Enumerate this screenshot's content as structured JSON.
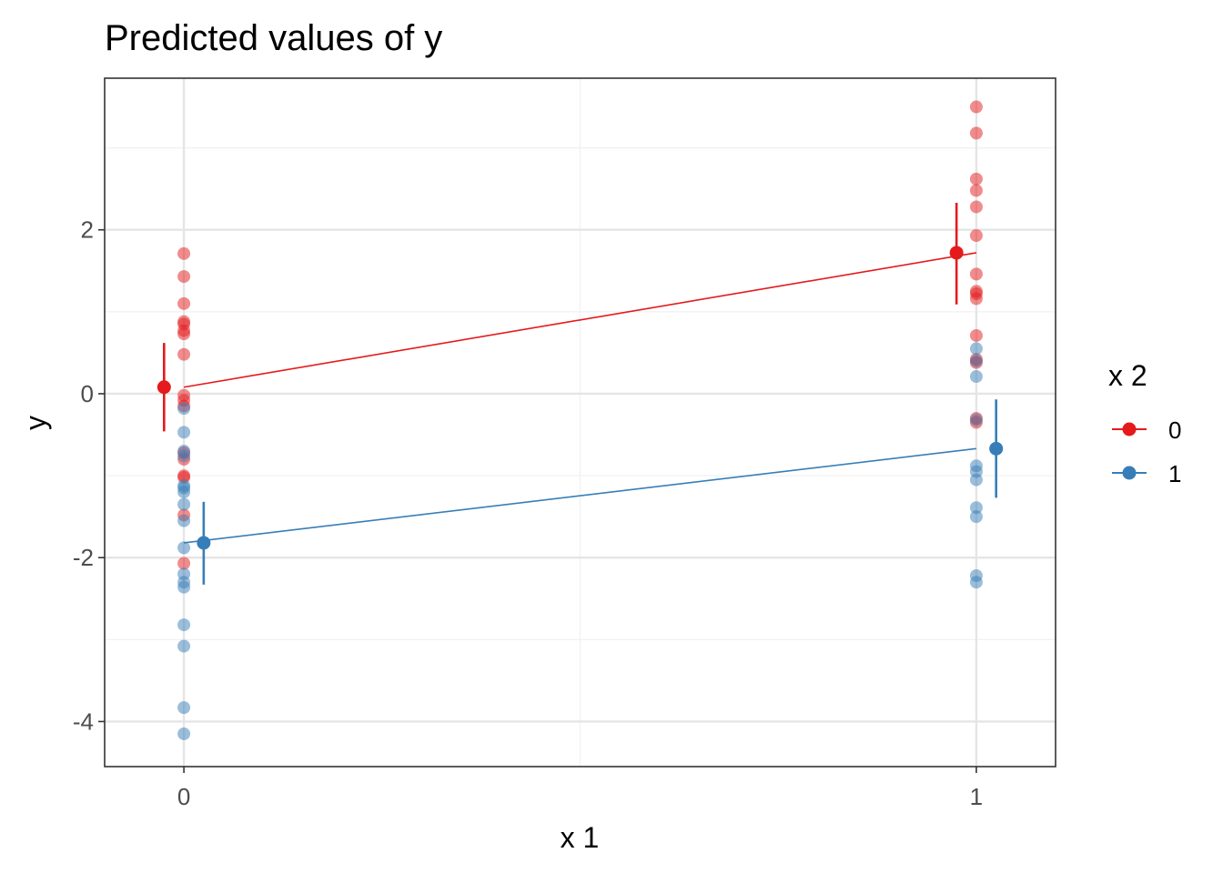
{
  "chart_data": {
    "type": "scatter",
    "title": "Predicted values of y",
    "xlabel": "x 1",
    "ylabel": "y",
    "x_categories": [
      "0",
      "1"
    ],
    "x_ticks": [
      0,
      1
    ],
    "y_ticks": [
      -4,
      -2,
      0,
      2
    ],
    "xlim": [
      -0.1,
      1.1
    ],
    "ylim": [
      -4.55,
      3.85
    ],
    "grid": true,
    "legend": {
      "title": "x 2",
      "position": "right",
      "entries": [
        "0",
        "1"
      ]
    },
    "series": [
      {
        "name": "0",
        "color": "#E41A1C",
        "predicted": [
          {
            "x": 0,
            "y": 0.08,
            "ci_low": -0.46,
            "ci_high": 0.62
          },
          {
            "x": 1,
            "y": 1.72,
            "ci_low": 1.09,
            "ci_high": 2.33
          }
        ],
        "raw_points": [
          {
            "x": 0,
            "values": [
              1.71,
              1.43,
              1.1,
              0.88,
              0.85,
              0.77,
              0.73,
              0.48,
              -0.02,
              -0.08,
              -0.15,
              -0.72,
              -0.8,
              -1.0,
              -1.02,
              -1.48,
              -2.07
            ]
          },
          {
            "x": 1,
            "values": [
              3.5,
              3.18,
              2.62,
              2.48,
              2.28,
              1.93,
              1.46,
              1.25,
              1.22,
              1.16,
              0.71,
              0.42,
              0.38,
              -0.3,
              -0.35
            ]
          }
        ]
      },
      {
        "name": "1",
        "color": "#377EB8",
        "predicted": [
          {
            "x": 0,
            "y": -1.82,
            "ci_low": -2.33,
            "ci_high": -1.32
          },
          {
            "x": 1,
            "y": -0.67,
            "ci_low": -1.27,
            "ci_high": -0.07
          }
        ],
        "raw_points": [
          {
            "x": 0,
            "values": [
              -0.18,
              -0.47,
              -0.7,
              -0.76,
              -1.12,
              -1.15,
              -1.2,
              -1.35,
              -1.55,
              -1.88,
              -2.2,
              -2.3,
              -2.36,
              -2.82,
              -3.08,
              -3.83,
              -4.15
            ]
          },
          {
            "x": 1,
            "values": [
              0.55,
              0.4,
              0.21,
              -0.32,
              -0.88,
              -0.95,
              -1.05,
              -1.39,
              -1.5,
              -2.22,
              -2.3
            ]
          }
        ]
      }
    ]
  }
}
